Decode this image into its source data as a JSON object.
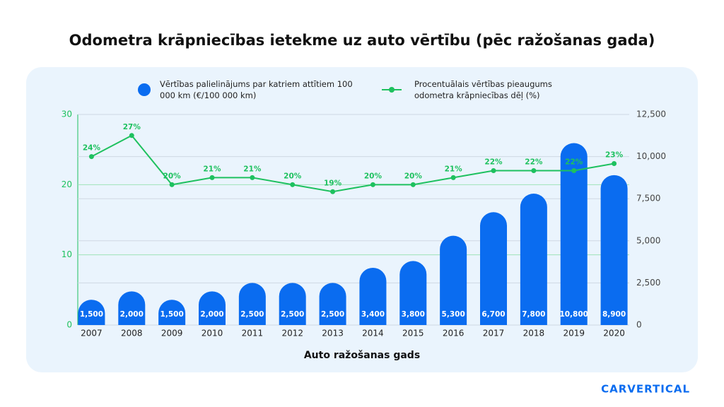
{
  "chart_data": {
    "type": "bar_line",
    "title": "Odometra krāpniecības ietekme uz auto vērtību (pēc ražošanas gada)",
    "x_label": "Auto ražošanas gads",
    "logo": "CARVERTICAL",
    "categories": [
      "2007",
      "2008",
      "2009",
      "2010",
      "2011",
      "2012",
      "2013",
      "2014",
      "2015",
      "2016",
      "2017",
      "2018",
      "2019",
      "2020"
    ],
    "ylim": [
      0,
      30
    ],
    "yticks": [
      0,
      10,
      20,
      30
    ],
    "y2lim": [
      0,
      12500
    ],
    "y2ticks": [
      0,
      {
        "value": 2500,
        "label": "2,500"
      },
      {
        "value": 5000,
        "label": "5,000"
      },
      {
        "value": 7500,
        "label": "7,500"
      },
      {
        "value": 10000,
        "label": "10,000"
      },
      {
        "value": 12500,
        "label": "12,500"
      }
    ],
    "grid": true,
    "series": [
      {
        "name": "Vērtības palielinājums par katriem attītiem 100 000 km (€/100 000 km)",
        "type": "bar",
        "axis": "y2",
        "color": "#0a6cf0",
        "values": [
          1500,
          2000,
          1500,
          2000,
          2500,
          2500,
          2500,
          3400,
          3800,
          5300,
          6700,
          7800,
          10800,
          8900
        ],
        "value_labels": [
          "1,500",
          "2,000",
          "1,500",
          "2,000",
          "2,500",
          "2,500",
          "2,500",
          "3,400",
          "3,800",
          "5,300",
          "6,700",
          "7,800",
          "10,800",
          "8,900"
        ]
      },
      {
        "name": "Procentuālais vērtības pieaugums odometra krāpniecības dēļ (%)",
        "type": "line",
        "axis": "y",
        "color": "#1ec15f",
        "values": [
          24,
          27,
          20,
          21,
          21,
          20,
          19,
          20,
          20,
          21,
          22,
          22,
          22,
          23
        ],
        "value_labels": [
          "24%",
          "27%",
          "20%",
          "21%",
          "21%",
          "20%",
          "19%",
          "20%",
          "20%",
          "21%",
          "22%",
          "22%",
          "22%",
          "23%"
        ]
      }
    ]
  }
}
